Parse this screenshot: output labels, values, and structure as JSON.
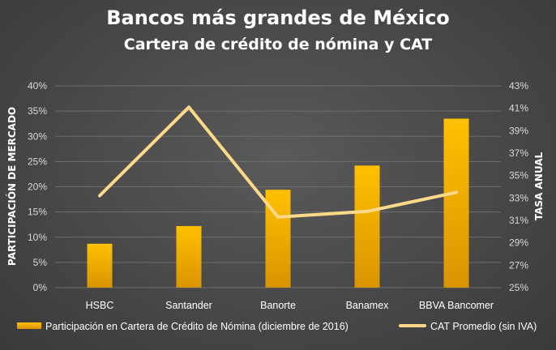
{
  "chart_data": {
    "type": "bar",
    "title": "Bancos más grandes de México",
    "subtitle": "Cartera de crédito de nómina y CAT",
    "categories": [
      "HSBC",
      "Santander",
      "Banorte",
      "Banamex",
      "BBVA Bancomer"
    ],
    "series": [
      {
        "name": "Participación en Cartera de Crédito de Nómina (diciembre de 2016)",
        "type": "bar",
        "axis": "left",
        "values": [
          8.7,
          12.2,
          19.4,
          24.2,
          33.5
        ],
        "color": "#ffc000"
      },
      {
        "name": "CAT Promedio (sin IVA)",
        "type": "line",
        "axis": "right",
        "values": [
          33.2,
          41.1,
          31.3,
          31.8,
          33.5
        ],
        "color": "#ffd98a"
      }
    ],
    "ylabel": "PARTICIPACIÓN DE MERCADO",
    "y2label": "TASA ANUAL",
    "ylim": [
      0,
      40
    ],
    "y2lim": [
      25,
      43
    ],
    "yticks": [
      "0%",
      "5%",
      "10%",
      "15%",
      "20%",
      "25%",
      "30%",
      "35%",
      "40%"
    ],
    "y2ticks": [
      "25%",
      "27%",
      "29%",
      "31%",
      "33%",
      "35%",
      "37%",
      "39%",
      "41%",
      "43%"
    ],
    "grid": true,
    "legend_position": "bottom"
  }
}
